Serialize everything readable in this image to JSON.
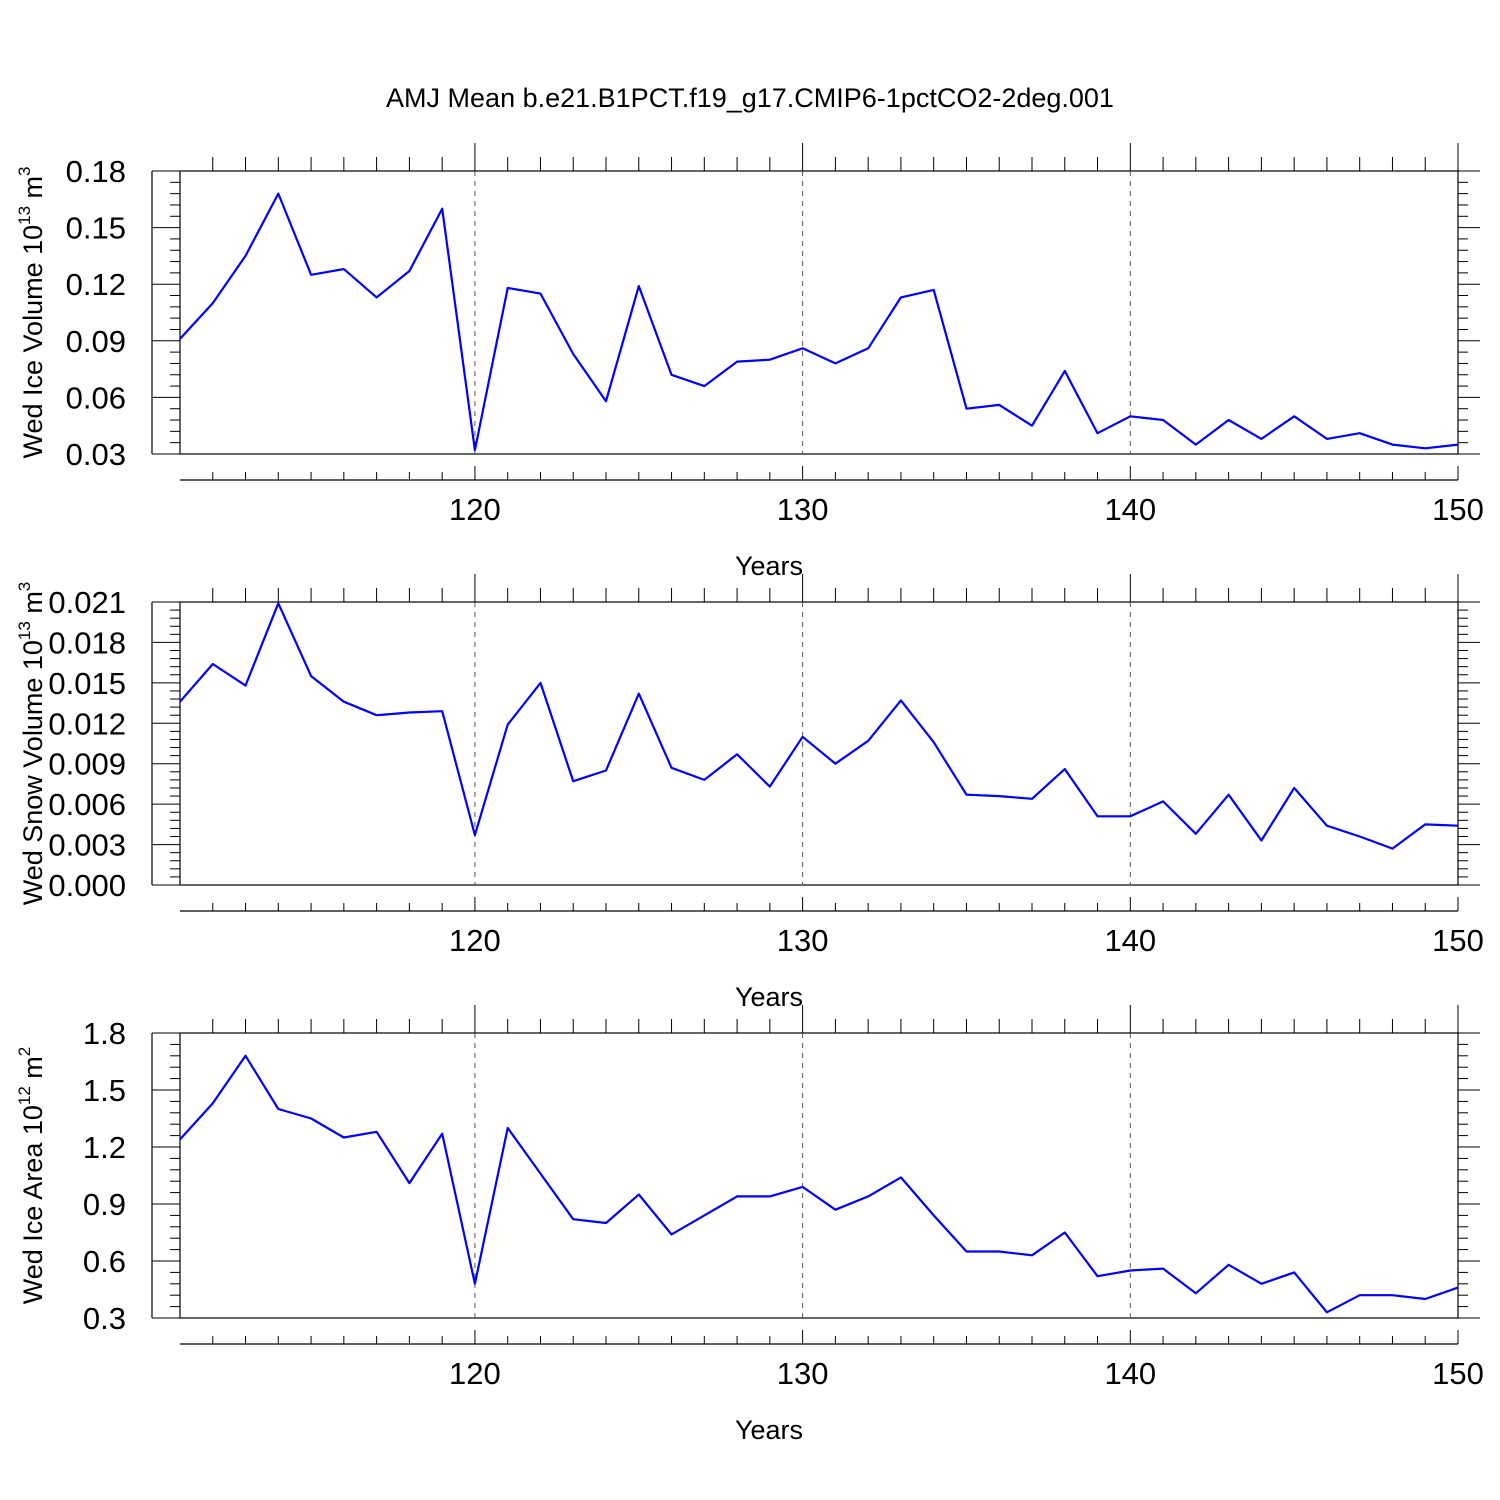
{
  "title": "AMJ Mean b.e21.B1PCT.f19_g17.CMIP6-1pctCO2-2deg.001",
  "chart_data": [
    {
      "type": "line",
      "ylabel": "Wed Ice Volume 10",
      "ylabel_exp": "13",
      "ylabel_unit": "m",
      "ylabel_unit_exp": "3",
      "xlabel": "Years",
      "xlim": [
        111,
        150
      ],
      "ylim": [
        0.03,
        0.18
      ],
      "yticks": [
        "0.03",
        "0.06",
        "0.09",
        "0.12",
        "0.15",
        "0.18"
      ],
      "xticks": [
        "120",
        "130",
        "140",
        "150"
      ],
      "grid": "vertical-dashed",
      "color": "#0000ff",
      "x": [
        111,
        112,
        113,
        114,
        115,
        116,
        117,
        118,
        119,
        120,
        121,
        122,
        123,
        124,
        125,
        126,
        127,
        128,
        129,
        130,
        131,
        132,
        133,
        134,
        135,
        136,
        137,
        138,
        139,
        140,
        141,
        142,
        143,
        144,
        145,
        146,
        147,
        148,
        149,
        150
      ],
      "values": [
        0.091,
        0.11,
        0.135,
        0.168,
        0.125,
        0.128,
        0.113,
        0.127,
        0.16,
        0.032,
        0.118,
        0.115,
        0.083,
        0.058,
        0.119,
        0.072,
        0.066,
        0.079,
        0.08,
        0.086,
        0.078,
        0.086,
        0.113,
        0.117,
        0.054,
        0.056,
        0.045,
        0.074,
        0.041,
        0.05,
        0.048,
        0.035,
        0.048,
        0.038,
        0.05,
        0.038,
        0.041,
        0.035,
        0.033,
        0.035
      ]
    },
    {
      "type": "line",
      "ylabel": "Wed Snow Volume 10",
      "ylabel_exp": "13",
      "ylabel_unit": "m",
      "ylabel_unit_exp": "3",
      "xlabel": "Years",
      "xlim": [
        111,
        150
      ],
      "ylim": [
        0.0,
        0.021
      ],
      "yticks": [
        "0.000",
        "0.003",
        "0.006",
        "0.009",
        "0.012",
        "0.015",
        "0.018",
        "0.021"
      ],
      "xticks": [
        "120",
        "130",
        "140",
        "150"
      ],
      "grid": "vertical-dashed",
      "color": "#0000ff",
      "x": [
        111,
        112,
        113,
        114,
        115,
        116,
        117,
        118,
        119,
        120,
        121,
        122,
        123,
        124,
        125,
        126,
        127,
        128,
        129,
        130,
        131,
        132,
        133,
        134,
        135,
        136,
        137,
        138,
        139,
        140,
        141,
        142,
        143,
        144,
        145,
        146,
        147,
        148,
        149,
        150
      ],
      "values": [
        0.0136,
        0.0164,
        0.0148,
        0.0209,
        0.0155,
        0.0136,
        0.0126,
        0.0128,
        0.0129,
        0.0037,
        0.0119,
        0.015,
        0.0077,
        0.0085,
        0.0142,
        0.0087,
        0.0078,
        0.0097,
        0.0073,
        0.011,
        0.009,
        0.0107,
        0.0137,
        0.0106,
        0.0067,
        0.0066,
        0.0064,
        0.0086,
        0.0051,
        0.0051,
        0.0062,
        0.0038,
        0.0067,
        0.0033,
        0.0072,
        0.0044,
        0.0036,
        0.0027,
        0.0045,
        0.0044
      ]
    },
    {
      "type": "line",
      "ylabel": "Wed Ice Area 10",
      "ylabel_exp": "12",
      "ylabel_unit": "m",
      "ylabel_unit_exp": "2",
      "xlabel": "Years",
      "xlim": [
        111,
        150
      ],
      "ylim": [
        0.3,
        1.8
      ],
      "yticks": [
        "0.3",
        "0.6",
        "0.9",
        "1.2",
        "1.5",
        "1.8"
      ],
      "xticks": [
        "120",
        "130",
        "140",
        "150"
      ],
      "grid": "vertical-dashed",
      "color": "#0000ff",
      "x": [
        111,
        112,
        113,
        114,
        115,
        116,
        117,
        118,
        119,
        120,
        121,
        122,
        123,
        124,
        125,
        126,
        127,
        128,
        129,
        130,
        131,
        132,
        133,
        134,
        135,
        136,
        137,
        138,
        139,
        140,
        141,
        142,
        143,
        144,
        145,
        146,
        147,
        148,
        149,
        150
      ],
      "values": [
        1.24,
        1.43,
        1.68,
        1.4,
        1.35,
        1.25,
        1.28,
        1.01,
        1.27,
        0.48,
        1.3,
        1.06,
        0.82,
        0.8,
        0.95,
        0.74,
        0.84,
        0.94,
        0.94,
        0.99,
        0.87,
        0.94,
        1.04,
        0.84,
        0.65,
        0.65,
        0.63,
        0.75,
        0.52,
        0.55,
        0.56,
        0.43,
        0.58,
        0.48,
        0.54,
        0.33,
        0.42,
        0.42,
        0.4,
        0.46
      ]
    }
  ]
}
